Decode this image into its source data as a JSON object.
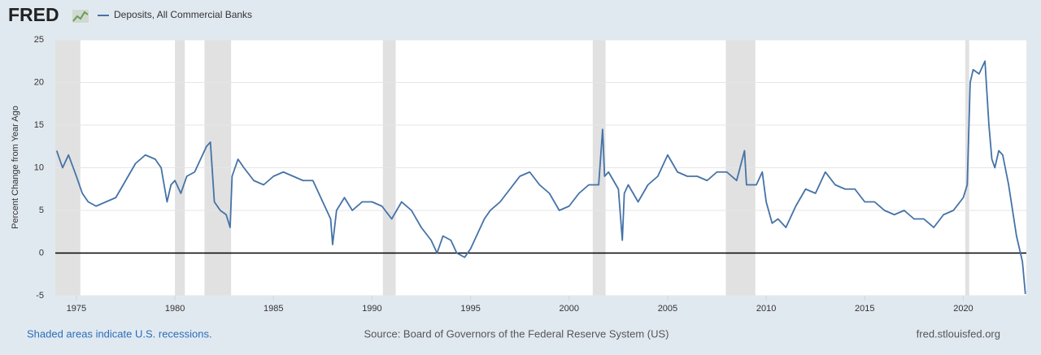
{
  "chart_data": {
    "type": "line",
    "logo": "FRED",
    "ylabel": "Percent Change from Year Ago",
    "footer_left": "Shaded areas indicate U.S. recessions.",
    "source": "Source: Board of Governors of the Federal Reserve System (US)",
    "site": "fred.stlouisfed.org",
    "xlim": [
      1973.93,
      2023.2
    ],
    "xticks": [
      1975,
      1980,
      1985,
      1990,
      1995,
      2000,
      2005,
      2010,
      2015,
      2020
    ],
    "ylim": [
      -5,
      25
    ],
    "yticks": [
      -5,
      0,
      5,
      10,
      15,
      20,
      25
    ],
    "grid": true,
    "recession_color": "#e1e1e1",
    "recessions": [
      [
        1973.93,
        1975.2
      ],
      [
        1980.0,
        1980.5
      ],
      [
        1981.5,
        1982.85
      ],
      [
        1990.55,
        1991.2
      ],
      [
        2001.2,
        2001.85
      ],
      [
        2007.95,
        2009.45
      ],
      [
        2020.1,
        2020.3
      ]
    ],
    "series": [
      {
        "name": "Deposits, All Commercial Banks",
        "color": "#4572a7",
        "x": [
          1974.0,
          1974.3,
          1974.6,
          1975.0,
          1975.3,
          1975.6,
          1976.0,
          1976.5,
          1977.0,
          1977.5,
          1978.0,
          1978.5,
          1979.0,
          1979.3,
          1979.6,
          1979.8,
          1980.0,
          1980.3,
          1980.6,
          1981.0,
          1981.3,
          1981.6,
          1981.8,
          1982.0,
          1982.3,
          1982.6,
          1982.8,
          1982.9,
          1983.2,
          1983.5,
          1984.0,
          1984.5,
          1985.0,
          1985.5,
          1986.0,
          1986.5,
          1987.0,
          1987.5,
          1987.9,
          1988.0,
          1988.2,
          1988.6,
          1989.0,
          1989.5,
          1990.0,
          1990.5,
          1991.0,
          1991.5,
          1992.0,
          1992.5,
          1993.0,
          1993.3,
          1993.6,
          1994.0,
          1994.3,
          1994.7,
          1995.0,
          1995.3,
          1995.7,
          1996.0,
          1996.5,
          1997.0,
          1997.5,
          1998.0,
          1998.5,
          1999.0,
          1999.5,
          2000.0,
          2000.5,
          2001.0,
          2001.5,
          2001.7,
          2001.8,
          2002.0,
          2002.5,
          2002.7,
          2002.8,
          2003.0,
          2003.5,
          2004.0,
          2004.5,
          2005.0,
          2005.5,
          2006.0,
          2006.5,
          2007.0,
          2007.5,
          2008.0,
          2008.5,
          2008.9,
          2009.0,
          2009.5,
          2009.8,
          2010.0,
          2010.3,
          2010.6,
          2011.0,
          2011.5,
          2012.0,
          2012.5,
          2013.0,
          2013.5,
          2014.0,
          2014.5,
          2015.0,
          2015.5,
          2016.0,
          2016.5,
          2017.0,
          2017.5,
          2018.0,
          2018.5,
          2019.0,
          2019.5,
          2020.0,
          2020.2,
          2020.35,
          2020.5,
          2020.8,
          2021.0,
          2021.1,
          2021.3,
          2021.45,
          2021.6,
          2021.8,
          2022.0,
          2022.3,
          2022.5,
          2022.7,
          2022.9,
          2023.0,
          2023.15
        ],
        "values": [
          12,
          10,
          11.5,
          9,
          7,
          6,
          5.5,
          6,
          6.5,
          8.5,
          10.5,
          11.5,
          11,
          10,
          6,
          8,
          8.5,
          7,
          9,
          9.5,
          11,
          12.5,
          13,
          6,
          5,
          4.5,
          3,
          9,
          11,
          10,
          8.5,
          8,
          9,
          9.5,
          9,
          8.5,
          8.5,
          6,
          4,
          1,
          5,
          6.5,
          5,
          6,
          6,
          5.5,
          4,
          6,
          5,
          3,
          1.5,
          0,
          2,
          1.5,
          0,
          -0.5,
          0.5,
          2,
          4,
          5,
          6,
          7.5,
          9,
          9.5,
          8,
          7,
          5,
          5.5,
          7,
          8,
          8,
          14.5,
          9,
          9.5,
          7.5,
          1.5,
          7,
          8,
          6,
          8,
          9,
          11.5,
          9.5,
          9,
          9,
          8.5,
          9.5,
          9.5,
          8.5,
          12,
          8,
          8,
          9.5,
          6,
          3.5,
          4,
          3,
          5.5,
          7.5,
          7,
          9.5,
          8,
          7.5,
          7.5,
          6,
          6,
          5,
          4.5,
          5,
          4,
          4,
          3,
          4.5,
          5,
          6.5,
          8,
          20,
          21.5,
          21,
          22,
          22.5,
          15,
          11,
          10,
          12,
          11.5,
          8,
          5,
          2,
          0,
          -1,
          -4.8
        ]
      }
    ]
  }
}
